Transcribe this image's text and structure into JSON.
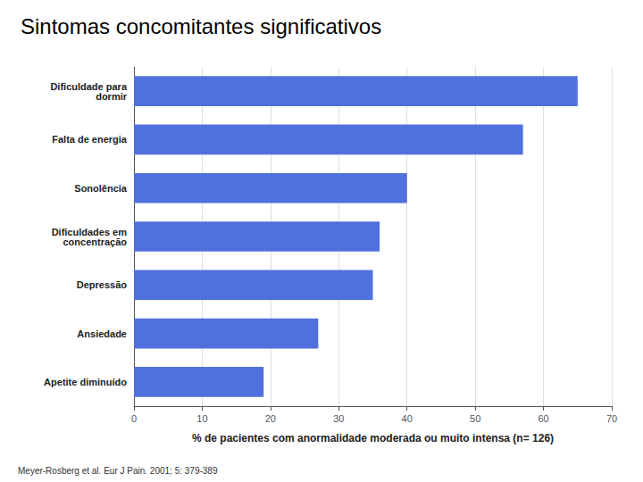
{
  "chart_data": {
    "type": "bar",
    "orientation": "horizontal",
    "title": "Sintomas concomitantes significativos",
    "categories": [
      "Dificuldade para\ndormir",
      "Falta de energia",
      "Sonolência",
      "Dificuldades em\nconcentração",
      "Depressão",
      "Ansiedade",
      "Apetite diminuído"
    ],
    "values": [
      65,
      57,
      40,
      36,
      35,
      27,
      19
    ],
    "xlabel": "% de pacientes com anormalidade moderada ou muito intensa (n= 126)",
    "xlim": [
      0,
      70
    ],
    "xticks": [
      0,
      10,
      20,
      30,
      40,
      50,
      60,
      70
    ],
    "grid": true,
    "annotations": [
      "Meyer-Rosberg et al. Eur J Pain. 2001; 5: 379-389"
    ]
  }
}
